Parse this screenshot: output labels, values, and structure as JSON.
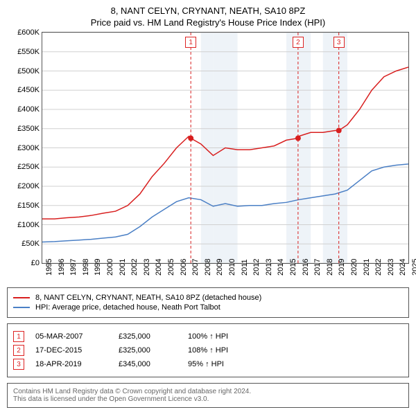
{
  "title_line1": "8, NANT CELYN, CRYNANT, NEATH, SA10 8PZ",
  "title_line2": "Price paid vs. HM Land Registry's House Price Index (HPI)",
  "chart": {
    "type": "line",
    "background_color": "#ffffff",
    "plot_border_color": "#555555",
    "grid_color": "#d0d0d0",
    "shaded_years": [
      2008,
      2009,
      2010,
      2015,
      2016,
      2018,
      2019
    ],
    "shade_fill": "#eef3f8",
    "x_axis": {
      "min": 1995,
      "max": 2025,
      "ticks": [
        1995,
        1996,
        1997,
        1998,
        1999,
        2000,
        2001,
        2002,
        2003,
        2004,
        2005,
        2006,
        2007,
        2008,
        2009,
        2010,
        2011,
        2012,
        2013,
        2014,
        2015,
        2016,
        2017,
        2018,
        2019,
        2020,
        2021,
        2022,
        2023,
        2024,
        2025
      ],
      "tick_rotation": "vertical",
      "tick_fontsize": 11
    },
    "y_axis": {
      "min": 0,
      "max": 600000,
      "ticks": [
        0,
        50000,
        100000,
        150000,
        200000,
        250000,
        300000,
        350000,
        400000,
        450000,
        500000,
        550000,
        600000
      ],
      "tick_labels": [
        "£0",
        "£50K",
        "£100K",
        "£150K",
        "£200K",
        "£250K",
        "£300K",
        "£350K",
        "£400K",
        "£450K",
        "£500K",
        "£550K",
        "£600K"
      ],
      "tick_fontsize": 11
    },
    "series": [
      {
        "id": "property",
        "color": "#d81e1e",
        "line_width": 1.5,
        "points": [
          [
            1995,
            115000
          ],
          [
            1996,
            115000
          ],
          [
            1997,
            118000
          ],
          [
            1998,
            120000
          ],
          [
            1999,
            124000
          ],
          [
            2000,
            130000
          ],
          [
            2001,
            135000
          ],
          [
            2002,
            150000
          ],
          [
            2003,
            180000
          ],
          [
            2004,
            225000
          ],
          [
            2005,
            260000
          ],
          [
            2006,
            300000
          ],
          [
            2007,
            330000
          ],
          [
            2007.17,
            325000
          ],
          [
            2008,
            310000
          ],
          [
            2009,
            280000
          ],
          [
            2010,
            300000
          ],
          [
            2011,
            295000
          ],
          [
            2012,
            295000
          ],
          [
            2013,
            300000
          ],
          [
            2014,
            305000
          ],
          [
            2015,
            320000
          ],
          [
            2015.96,
            325000
          ],
          [
            2016,
            330000
          ],
          [
            2017,
            340000
          ],
          [
            2018,
            340000
          ],
          [
            2019,
            345000
          ],
          [
            2019.3,
            345000
          ],
          [
            2020,
            360000
          ],
          [
            2021,
            400000
          ],
          [
            2022,
            450000
          ],
          [
            2023,
            485000
          ],
          [
            2024,
            500000
          ],
          [
            2025,
            510000
          ]
        ]
      },
      {
        "id": "hpi",
        "color": "#4a7fc5",
        "line_width": 1.5,
        "points": [
          [
            1995,
            55000
          ],
          [
            1996,
            56000
          ],
          [
            1997,
            58000
          ],
          [
            1998,
            60000
          ],
          [
            1999,
            62000
          ],
          [
            2000,
            65000
          ],
          [
            2001,
            68000
          ],
          [
            2002,
            75000
          ],
          [
            2003,
            95000
          ],
          [
            2004,
            120000
          ],
          [
            2005,
            140000
          ],
          [
            2006,
            160000
          ],
          [
            2007,
            170000
          ],
          [
            2008,
            165000
          ],
          [
            2009,
            148000
          ],
          [
            2010,
            155000
          ],
          [
            2011,
            148000
          ],
          [
            2012,
            150000
          ],
          [
            2013,
            150000
          ],
          [
            2014,
            155000
          ],
          [
            2015,
            158000
          ],
          [
            2016,
            165000
          ],
          [
            2017,
            170000
          ],
          [
            2018,
            175000
          ],
          [
            2019,
            180000
          ],
          [
            2020,
            190000
          ],
          [
            2021,
            215000
          ],
          [
            2022,
            240000
          ],
          [
            2023,
            250000
          ],
          [
            2024,
            255000
          ],
          [
            2025,
            258000
          ]
        ]
      }
    ],
    "sale_markers": [
      {
        "num": "1",
        "year": 2007.17,
        "value": 325000
      },
      {
        "num": "2",
        "year": 2015.96,
        "value": 325000
      },
      {
        "num": "3",
        "year": 2019.3,
        "value": 345000
      }
    ],
    "sale_marker_style": {
      "vline_color": "#d81e1e",
      "vline_dash": "4,3",
      "box_border": "#d81e1e",
      "box_text_color": "#d81e1e",
      "point_fill": "#d81e1e",
      "point_radius": 4
    }
  },
  "legend": {
    "items": [
      {
        "color": "#d81e1e",
        "label": "8, NANT CELYN, CRYNANT, NEATH, SA10 8PZ (detached house)"
      },
      {
        "color": "#4a7fc5",
        "label": "HPI: Average price, detached house, Neath Port Talbot"
      }
    ]
  },
  "sales_table": {
    "rows": [
      {
        "num": "1",
        "date": "05-MAR-2007",
        "price": "£325,000",
        "vs_hpi": "100% ↑ HPI"
      },
      {
        "num": "2",
        "date": "17-DEC-2015",
        "price": "£325,000",
        "vs_hpi": "108% ↑ HPI"
      },
      {
        "num": "3",
        "date": "18-APR-2019",
        "price": "£345,000",
        "vs_hpi": "95% ↑ HPI"
      }
    ]
  },
  "footer": {
    "line1": "Contains HM Land Registry data © Crown copyright and database right 2024.",
    "line2": "This data is licensed under the Open Government Licence v3.0."
  }
}
